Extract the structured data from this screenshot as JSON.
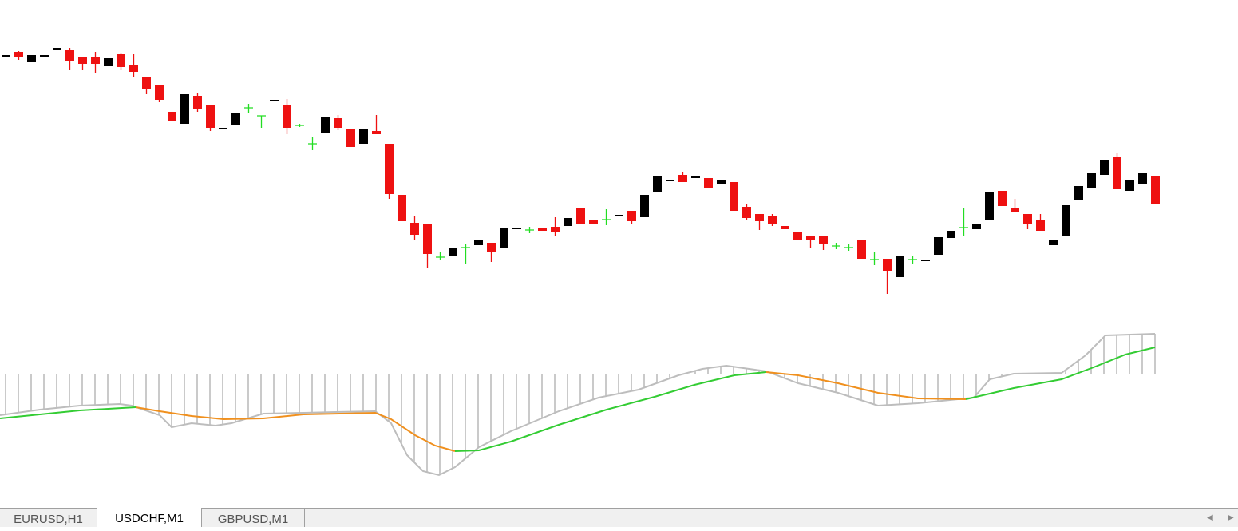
{
  "tabs": [
    "EURUSD,H1",
    "USDCHF,M1",
    "GBPUSD,M1"
  ]
}
